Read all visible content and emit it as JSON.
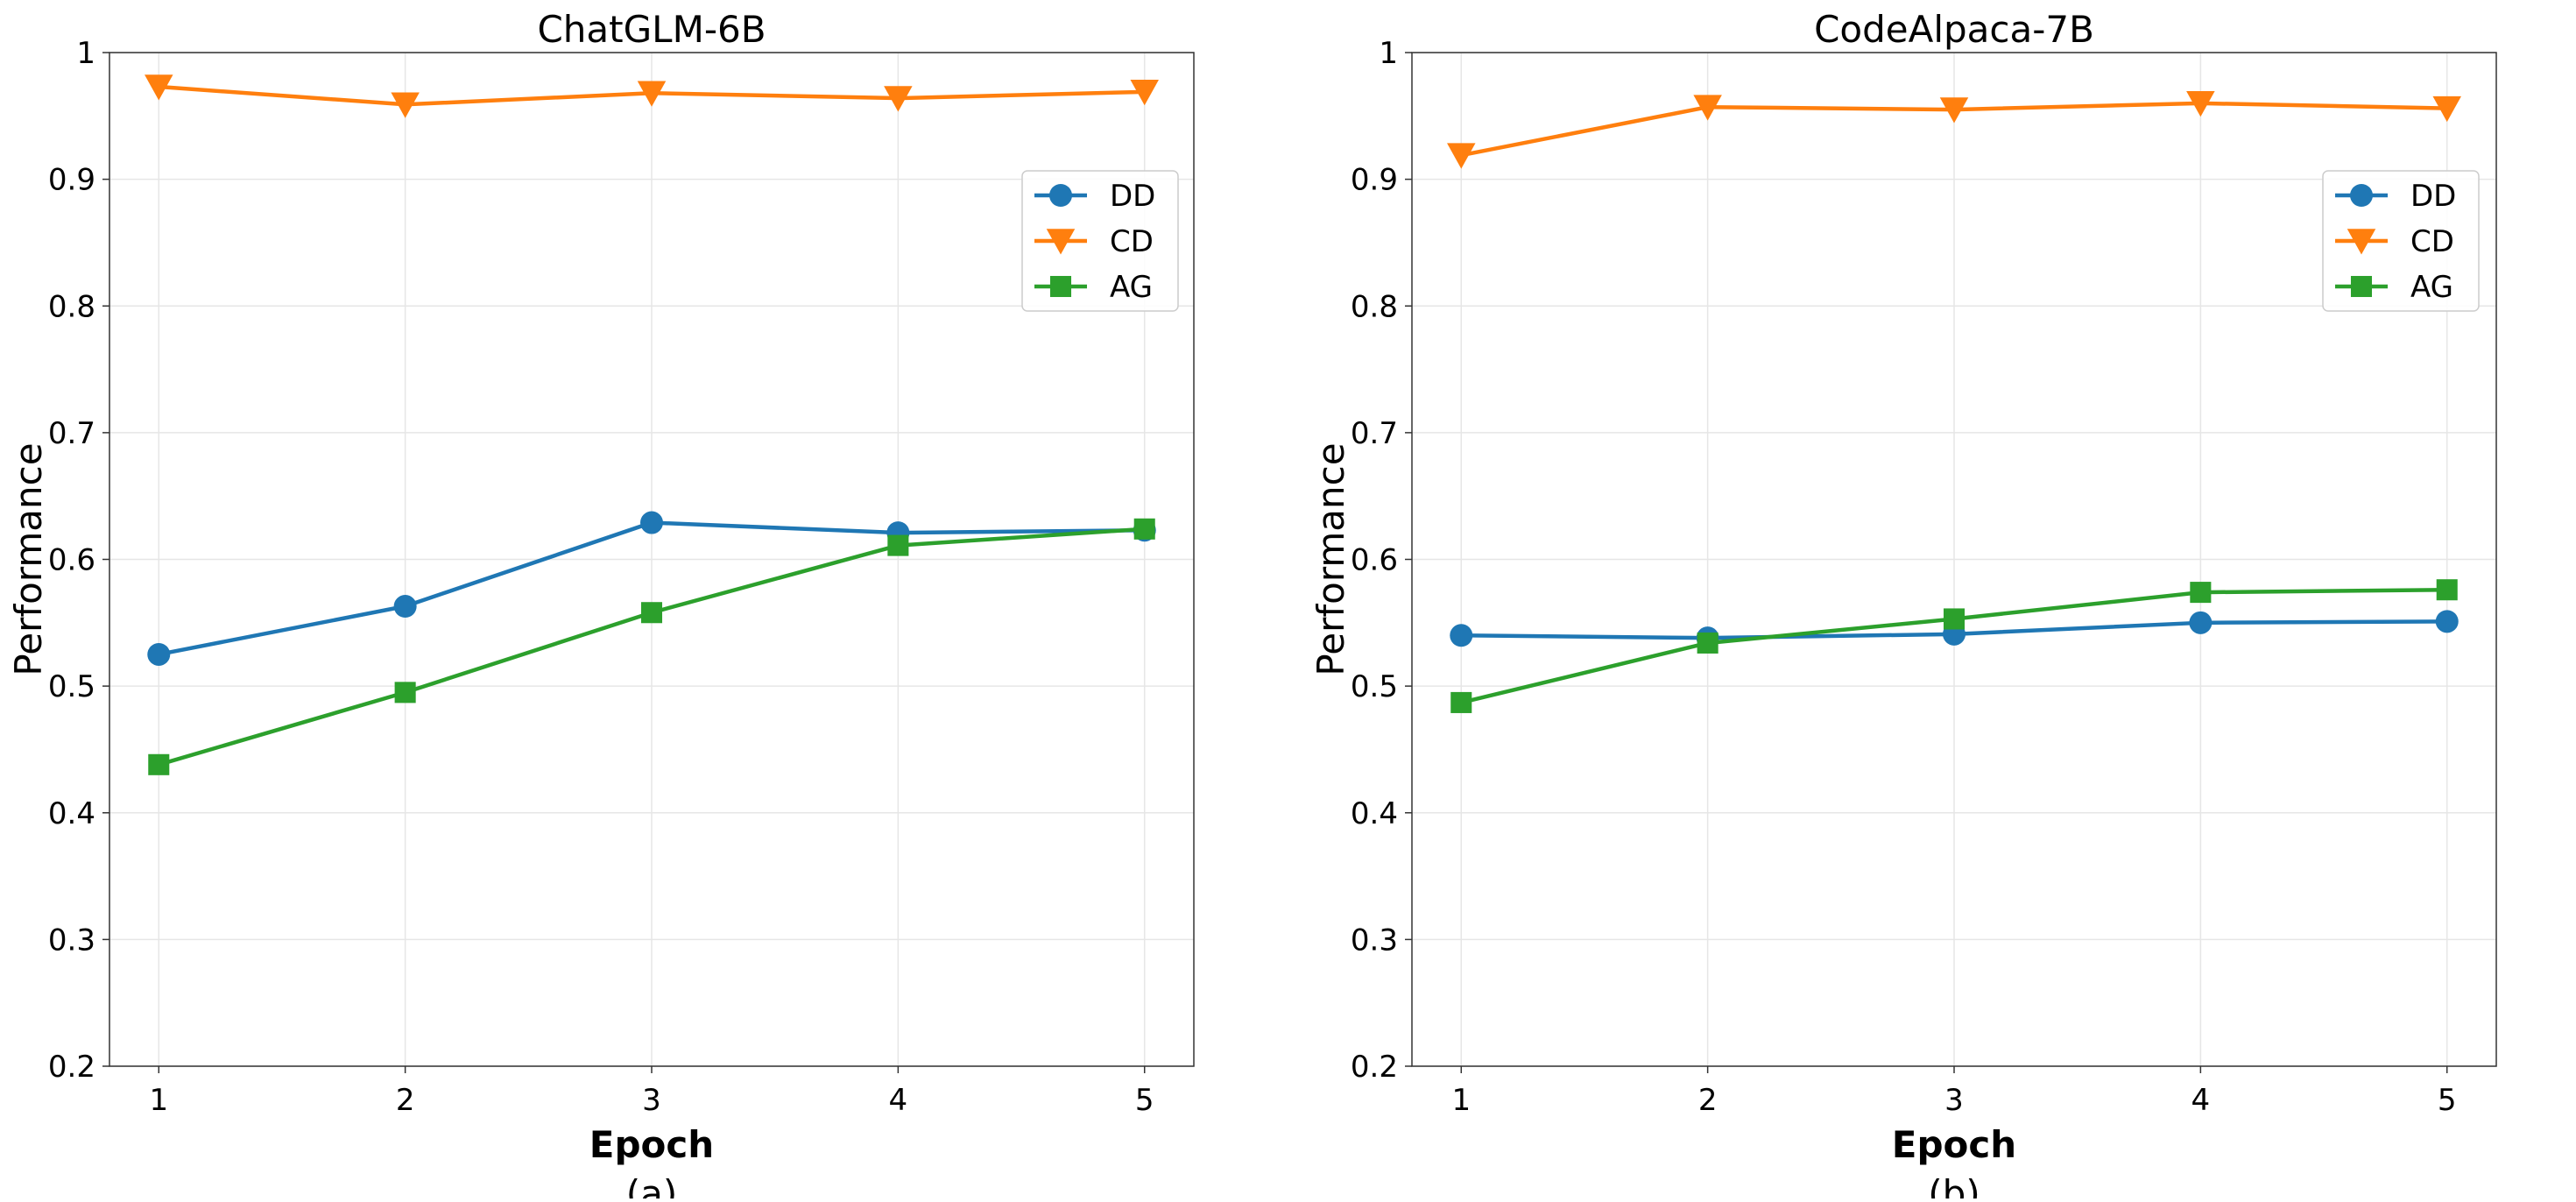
{
  "chart_data": [
    {
      "type": "line",
      "title": "ChatGLM-6B",
      "xlabel": "Epoch",
      "ylabel": "Performance",
      "caption": "(a)",
      "x": [
        1,
        2,
        3,
        4,
        5
      ],
      "xlim": [
        0.8,
        5.2
      ],
      "ylim": [
        0.2,
        1.0
      ],
      "xticks": [
        "1",
        "2",
        "3",
        "4",
        "5"
      ],
      "yticks": [
        "0.2",
        "0.3",
        "0.4",
        "0.5",
        "0.6",
        "0.7",
        "0.8",
        "0.9",
        "1"
      ],
      "grid": true,
      "legend_position": "upper-right",
      "series": [
        {
          "name": "DD",
          "marker": "circle",
          "color": "#1f77b4",
          "values": [
            0.525,
            0.563,
            0.629,
            0.621,
            0.623
          ]
        },
        {
          "name": "CD",
          "marker": "triangle-down",
          "color": "#ff7f0e",
          "values": [
            0.973,
            0.959,
            0.968,
            0.964,
            0.969
          ]
        },
        {
          "name": "AG",
          "marker": "square",
          "color": "#2ca02c",
          "values": [
            0.438,
            0.495,
            0.558,
            0.611,
            0.624
          ]
        }
      ]
    },
    {
      "type": "line",
      "title": "CodeAlpaca-7B",
      "xlabel": "Epoch",
      "ylabel": "Performance",
      "caption": "(b)",
      "x": [
        1,
        2,
        3,
        4,
        5
      ],
      "xlim": [
        0.8,
        5.2
      ],
      "ylim": [
        0.2,
        1.0
      ],
      "xticks": [
        "1",
        "2",
        "3",
        "4",
        "5"
      ],
      "yticks": [
        "0.2",
        "0.3",
        "0.4",
        "0.5",
        "0.6",
        "0.7",
        "0.8",
        "0.9",
        "1"
      ],
      "grid": true,
      "legend_position": "upper-right",
      "series": [
        {
          "name": "DD",
          "marker": "circle",
          "color": "#1f77b4",
          "values": [
            0.54,
            0.538,
            0.541,
            0.55,
            0.551
          ]
        },
        {
          "name": "CD",
          "marker": "triangle-down",
          "color": "#ff7f0e",
          "values": [
            0.919,
            0.957,
            0.955,
            0.96,
            0.956
          ]
        },
        {
          "name": "AG",
          "marker": "square",
          "color": "#2ca02c",
          "values": [
            0.487,
            0.534,
            0.553,
            0.574,
            0.576
          ]
        }
      ]
    }
  ]
}
